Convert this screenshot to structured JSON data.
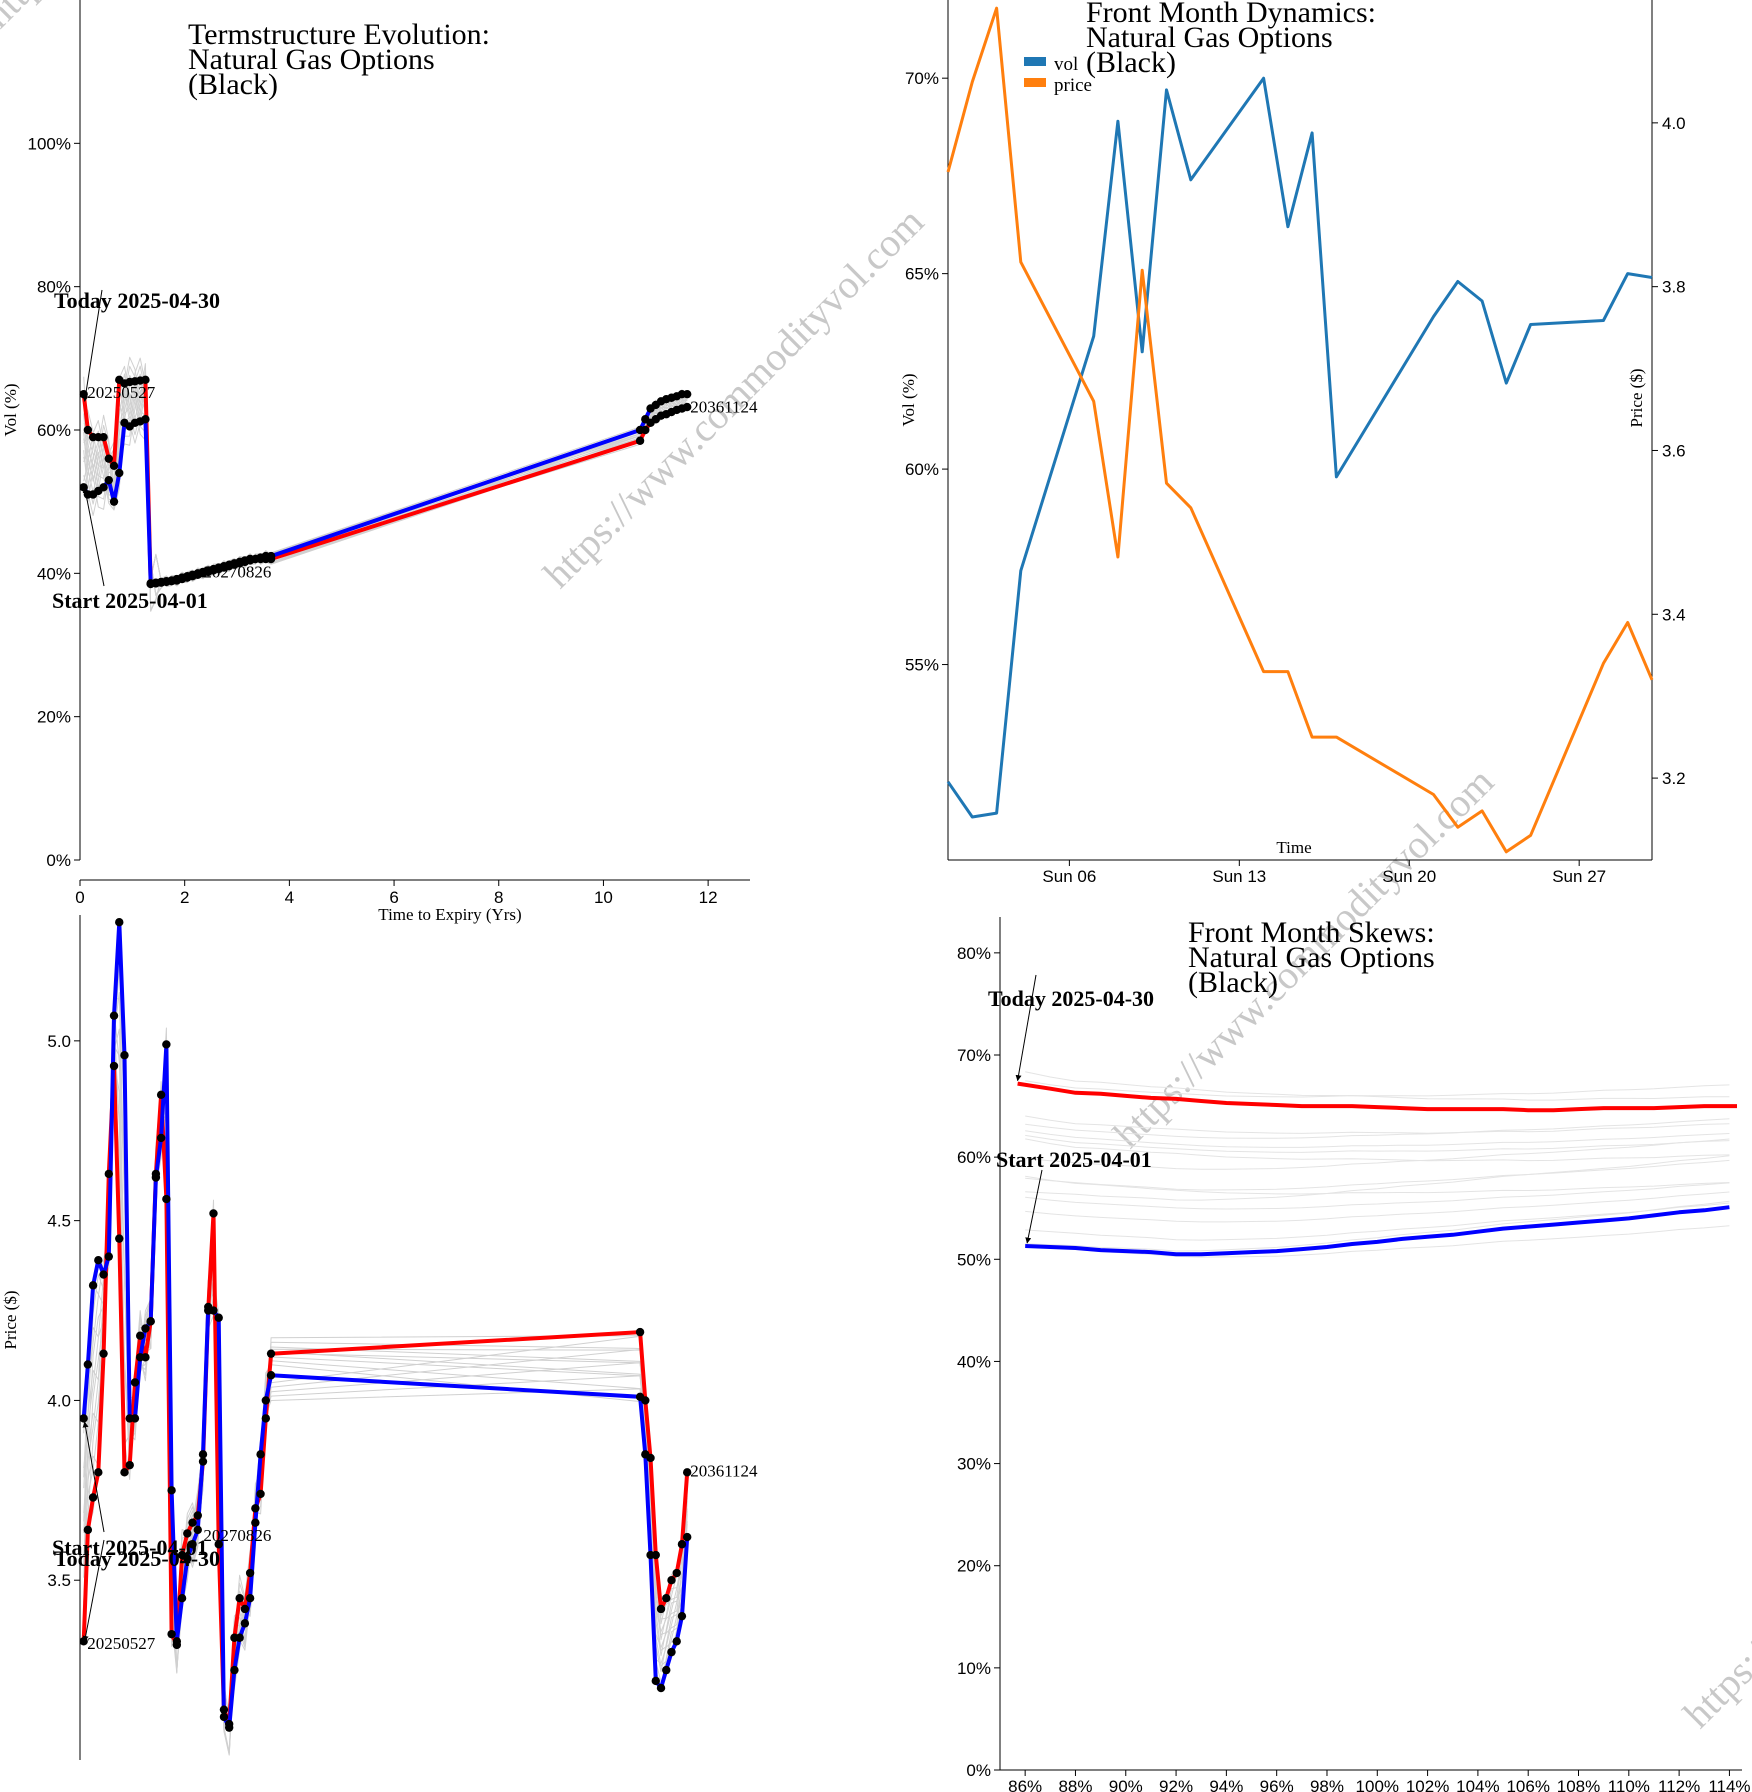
{
  "watermark": "https://www.commodityvol.com",
  "chart_data": [
    {
      "id": "termstructure",
      "type": "line",
      "title": [
        "Termstructure Evolution:",
        "Natural Gas Options",
        "(Black)"
      ],
      "xlabel": "Time to Expiry (Yrs)",
      "ylabel": "Vol (%)",
      "xlim": [
        0,
        12.8
      ],
      "ylim": [
        0,
        1.2
      ],
      "xticks": [
        0,
        2,
        4,
        6,
        8,
        10,
        12
      ],
      "yticks": [
        0,
        0.2,
        0.4,
        0.6,
        0.8,
        1.0
      ],
      "ytick_format": "percent",
      "annotations": [
        {
          "text": "Today 2025-04-30",
          "x": 0.05,
          "y": 0.64
        },
        {
          "text": "Start 2025-04-01",
          "x": 0.05,
          "y": 0.52
        }
      ],
      "point_labels": [
        {
          "text": "20250527",
          "x": 0.08,
          "y": 0.65
        },
        {
          "text": "20270826",
          "x": 2.3,
          "y": 0.4
        },
        {
          "text": "20361124",
          "x": 11.6,
          "y": 0.63
        }
      ],
      "series": [
        {
          "name": "Today 2025-04-30",
          "color": "#ff0000",
          "x": [
            0.07,
            0.15,
            0.25,
            0.35,
            0.45,
            0.55,
            0.65,
            0.75,
            0.85,
            0.95,
            1.05,
            1.15,
            1.25,
            1.35,
            1.45,
            1.55,
            1.65,
            1.75,
            1.85,
            1.95,
            2.05,
            2.15,
            2.25,
            2.35,
            2.45,
            2.55,
            2.65,
            2.75,
            2.85,
            2.95,
            3.05,
            3.15,
            3.25,
            3.35,
            3.45,
            3.55,
            3.65,
            10.7,
            10.8,
            10.9,
            11.0,
            11.1,
            11.2,
            11.3,
            11.4,
            11.5,
            11.6
          ],
          "y": [
            0.65,
            0.6,
            0.59,
            0.59,
            0.59,
            0.56,
            0.55,
            0.67,
            0.665,
            0.667,
            0.668,
            0.669,
            0.67,
            0.385,
            0.386,
            0.387,
            0.388,
            0.389,
            0.39,
            0.392,
            0.394,
            0.396,
            0.398,
            0.4,
            0.402,
            0.404,
            0.406,
            0.408,
            0.41,
            0.412,
            0.414,
            0.416,
            0.418,
            0.42,
            0.42,
            0.42,
            0.42,
            0.585,
            0.6,
            0.61,
            0.615,
            0.62,
            0.622,
            0.625,
            0.628,
            0.63,
            0.632
          ]
        },
        {
          "name": "Start 2025-04-01",
          "color": "#0000ff",
          "x": [
            0.07,
            0.15,
            0.25,
            0.35,
            0.45,
            0.55,
            0.65,
            0.75,
            0.85,
            0.95,
            1.05,
            1.15,
            1.25,
            1.35,
            1.45,
            1.55,
            1.65,
            1.75,
            1.85,
            1.95,
            2.05,
            2.15,
            2.25,
            2.35,
            2.45,
            2.55,
            2.65,
            2.75,
            2.85,
            2.95,
            3.05,
            3.15,
            3.25,
            3.35,
            3.45,
            3.55,
            3.65,
            10.7,
            10.8,
            10.9,
            11.0,
            11.1,
            11.2,
            11.3,
            11.4,
            11.5,
            11.6
          ],
          "y": [
            0.52,
            0.51,
            0.51,
            0.515,
            0.52,
            0.53,
            0.5,
            0.54,
            0.61,
            0.605,
            0.61,
            0.612,
            0.615,
            0.386,
            0.387,
            0.388,
            0.389,
            0.39,
            0.392,
            0.394,
            0.396,
            0.398,
            0.4,
            0.402,
            0.404,
            0.406,
            0.408,
            0.41,
            0.412,
            0.414,
            0.416,
            0.418,
            0.42,
            0.42,
            0.422,
            0.424,
            0.424,
            0.6,
            0.615,
            0.63,
            0.635,
            0.64,
            0.643,
            0.645,
            0.647,
            0.65,
            0.65
          ]
        }
      ]
    },
    {
      "id": "dynamics",
      "type": "line",
      "title": [
        "Front Month Dynamics:",
        "Natural Gas Options",
        "(Black)"
      ],
      "xlabel": "Time",
      "ylabel": "Vol (%)",
      "ylabel_right": "Price ($)",
      "x": [
        "2025-04-01",
        "2025-04-02",
        "2025-04-03",
        "2025-04-04",
        "2025-04-07",
        "2025-04-08",
        "2025-04-09",
        "2025-04-10",
        "2025-04-11",
        "2025-04-14",
        "2025-04-15",
        "2025-04-16",
        "2025-04-17",
        "2025-04-21",
        "2025-04-22",
        "2025-04-23",
        "2025-04-24",
        "2025-04-25",
        "2025-04-28",
        "2025-04-29",
        "2025-04-30"
      ],
      "xlim": [
        "2025-04-01",
        "2025-04-30"
      ],
      "xticks": [
        "Sun 06",
        "Sun 13",
        "Sun 20",
        "Sun 27"
      ],
      "xtick_dates": [
        "2025-04-06",
        "2025-04-13",
        "2025-04-20",
        "2025-04-27"
      ],
      "ylim": [
        0.5,
        0.72
      ],
      "yticks": [
        0.55,
        0.6,
        0.65,
        0.7
      ],
      "ytick_format": "percent",
      "ylim_right": [
        3.1,
        4.15
      ],
      "yticks_right": [
        3.2,
        3.4,
        3.6,
        3.8,
        4.0
      ],
      "legend": "top-left",
      "series": [
        {
          "name": "vol",
          "color": "#1f77b4",
          "axis": "left",
          "values": [
            0.52,
            0.511,
            0.512,
            0.574,
            0.634,
            0.689,
            0.63,
            0.697,
            0.674,
            0.7,
            0.662,
            0.686,
            0.598,
            0.639,
            0.648,
            0.643,
            0.622,
            0.637,
            0.638,
            0.65,
            0.649
          ]
        },
        {
          "name": "price",
          "color": "#ff7f0e",
          "axis": "left_right",
          "values": [
            3.94,
            4.05,
            4.14,
            3.83,
            3.66,
            3.47,
            3.82,
            3.56,
            3.53,
            3.33,
            3.33,
            3.25,
            3.25,
            3.18,
            3.14,
            3.16,
            3.11,
            3.13,
            3.34,
            3.39,
            3.32
          ]
        }
      ]
    },
    {
      "id": "price_curve",
      "type": "line",
      "title": "",
      "xlabel": "",
      "ylabel": "Price ($)",
      "xlim": [
        0,
        12.8
      ],
      "ylim": [
        3.0,
        5.35
      ],
      "yticks": [
        3.5,
        4.0,
        4.5,
        5.0
      ],
      "annotations": [
        {
          "text": "Start 2025-04-01",
          "x": 0.05,
          "y": 3.94
        },
        {
          "text": "Today 2025-04-30",
          "x": 0.05,
          "y": 3.33
        }
      ],
      "point_labels": [
        {
          "text": "20250527",
          "x": 0.08,
          "y": 3.32
        },
        {
          "text": "20270826",
          "x": 2.3,
          "y": 3.62
        },
        {
          "text": "20361124",
          "x": 11.6,
          "y": 3.8
        }
      ],
      "series": [
        {
          "name": "Today 2025-04-30",
          "color": "#ff0000",
          "x": [
            0.07,
            0.15,
            0.25,
            0.35,
            0.45,
            0.55,
            0.65,
            0.75,
            0.85,
            0.95,
            1.05,
            1.15,
            1.25,
            1.35,
            1.45,
            1.55,
            1.65,
            1.75,
            1.85,
            1.95,
            2.05,
            2.15,
            2.25,
            2.35,
            2.45,
            2.55,
            2.65,
            2.75,
            2.85,
            2.95,
            3.05,
            3.15,
            3.25,
            3.35,
            3.45,
            3.55,
            3.65,
            10.7,
            10.8,
            10.9,
            11.0,
            11.1,
            11.2,
            11.3,
            11.4,
            11.5,
            11.6
          ],
          "y": [
            3.33,
            3.64,
            3.73,
            3.8,
            4.13,
            4.63,
            4.93,
            4.45,
            3.8,
            3.82,
            4.05,
            4.18,
            4.12,
            4.22,
            4.63,
            4.85,
            4.56,
            3.35,
            3.32,
            3.57,
            3.63,
            3.66,
            3.68,
            3.83,
            4.25,
            4.52,
            3.6,
            3.14,
            3.1,
            3.34,
            3.45,
            3.42,
            3.52,
            3.7,
            3.74,
            3.95,
            4.13,
            4.19,
            4.0,
            3.84,
            3.57,
            3.42,
            3.45,
            3.5,
            3.52,
            3.6,
            3.8
          ]
        },
        {
          "name": "Start 2025-04-01",
          "color": "#0000ff",
          "x": [
            0.07,
            0.15,
            0.25,
            0.35,
            0.45,
            0.55,
            0.65,
            0.75,
            0.85,
            0.95,
            1.05,
            1.15,
            1.25,
            1.35,
            1.45,
            1.55,
            1.65,
            1.75,
            1.85,
            1.95,
            2.05,
            2.15,
            2.25,
            2.35,
            2.45,
            2.55,
            2.65,
            2.75,
            2.85,
            2.95,
            3.05,
            3.15,
            3.25,
            3.35,
            3.45,
            3.55,
            3.65,
            10.7,
            10.8,
            10.9,
            11.0,
            11.1,
            11.2,
            11.3,
            11.4,
            11.5,
            11.6
          ],
          "y": [
            3.95,
            4.1,
            4.32,
            4.39,
            4.35,
            4.4,
            5.07,
            5.33,
            4.96,
            3.95,
            3.95,
            4.12,
            4.2,
            4.22,
            4.62,
            4.73,
            4.99,
            3.75,
            3.33,
            3.45,
            3.56,
            3.6,
            3.64,
            3.85,
            4.26,
            4.25,
            4.23,
            3.12,
            3.09,
            3.25,
            3.34,
            3.38,
            3.45,
            3.66,
            3.85,
            4.0,
            4.07,
            4.01,
            3.85,
            3.57,
            3.22,
            3.2,
            3.25,
            3.3,
            3.33,
            3.4,
            3.62
          ]
        }
      ]
    },
    {
      "id": "skews",
      "type": "line",
      "title": [
        "Front Month Skews:",
        "Natural Gas Options",
        "(Black)"
      ],
      "xlabel": "",
      "ylabel": "",
      "xlim": [
        0.85,
        1.145
      ],
      "xticks": [
        0.86,
        0.88,
        0.9,
        0.92,
        0.94,
        0.96,
        0.98,
        1.0,
        1.02,
        1.04,
        1.06,
        1.08,
        1.1,
        1.12,
        1.14
      ],
      "xtick_format": "percent",
      "ylim": [
        0,
        0.84
      ],
      "yticks": [
        0,
        0.1,
        0.2,
        0.3,
        0.4,
        0.5,
        0.6,
        0.7,
        0.8
      ],
      "ytick_format": "percent",
      "annotations": [
        {
          "text": "Today 2025-04-30",
          "x": 0.857,
          "y": 0.672
        },
        {
          "text": "Start 2025-04-01",
          "x": 0.86,
          "y": 0.513
        }
      ],
      "series": [
        {
          "name": "Today 2025-04-30",
          "color": "#ff0000",
          "x": [
            0.857,
            0.87,
            0.88,
            0.89,
            0.9,
            0.91,
            0.92,
            0.93,
            0.94,
            0.95,
            0.96,
            0.97,
            0.98,
            0.99,
            1.0,
            1.01,
            1.02,
            1.03,
            1.04,
            1.05,
            1.06,
            1.07,
            1.08,
            1.09,
            1.1,
            1.11,
            1.12,
            1.13,
            1.143
          ],
          "y": [
            0.672,
            0.667,
            0.663,
            0.662,
            0.66,
            0.658,
            0.657,
            0.655,
            0.653,
            0.652,
            0.651,
            0.65,
            0.65,
            0.65,
            0.649,
            0.648,
            0.647,
            0.647,
            0.647,
            0.647,
            0.646,
            0.646,
            0.647,
            0.648,
            0.648,
            0.648,
            0.649,
            0.65,
            0.65
          ]
        },
        {
          "name": "Start 2025-04-01",
          "color": "#0000ff",
          "x": [
            0.86,
            0.87,
            0.88,
            0.89,
            0.9,
            0.91,
            0.92,
            0.93,
            0.94,
            0.95,
            0.96,
            0.97,
            0.98,
            0.99,
            1.0,
            1.01,
            1.02,
            1.03,
            1.04,
            1.05,
            1.06,
            1.07,
            1.08,
            1.09,
            1.1,
            1.11,
            1.12,
            1.13,
            1.14
          ],
          "y": [
            0.513,
            0.512,
            0.511,
            0.509,
            0.508,
            0.507,
            0.505,
            0.505,
            0.506,
            0.507,
            0.508,
            0.51,
            0.512,
            0.515,
            0.517,
            0.52,
            0.522,
            0.524,
            0.527,
            0.53,
            0.532,
            0.534,
            0.536,
            0.538,
            0.54,
            0.543,
            0.546,
            0.548,
            0.551
          ]
        }
      ]
    }
  ]
}
